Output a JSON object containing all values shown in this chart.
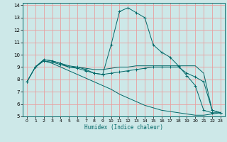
{
  "xlabel": "Humidex (Indice chaleur)",
  "ylabel": "",
  "bg_color": "#cde8e8",
  "grid_color": "#e8a0a0",
  "line_color": "#006868",
  "xlim": [
    -0.5,
    23.5
  ],
  "ylim": [
    5,
    14.2
  ],
  "yticks": [
    5,
    6,
    7,
    8,
    9,
    10,
    11,
    12,
    13,
    14
  ],
  "xticks": [
    0,
    1,
    2,
    3,
    4,
    5,
    6,
    7,
    8,
    9,
    10,
    11,
    12,
    13,
    14,
    15,
    16,
    17,
    18,
    19,
    20,
    21,
    22,
    23
  ],
  "series": [
    {
      "x": [
        0,
        1,
        2,
        3,
        4,
        5,
        6,
        7,
        8,
        9,
        10,
        11,
        12,
        13,
        14,
        15,
        16,
        17,
        18,
        19,
        20,
        21,
        22,
        23
      ],
      "y": [
        7.8,
        9.0,
        9.6,
        9.5,
        9.3,
        9.0,
        9.0,
        8.8,
        8.5,
        8.4,
        10.8,
        13.5,
        13.8,
        13.4,
        13.0,
        10.8,
        10.2,
        9.8,
        9.1,
        8.3,
        7.5,
        5.5,
        5.3,
        5.3
      ],
      "marker": "+"
    },
    {
      "x": [
        0,
        1,
        2,
        3,
        4,
        5,
        6,
        7,
        8,
        9,
        10,
        11,
        12,
        13,
        14,
        15,
        16,
        17,
        18,
        19,
        20,
        21,
        22,
        23
      ],
      "y": [
        7.8,
        9.0,
        9.6,
        9.5,
        9.3,
        9.1,
        9.0,
        8.9,
        8.8,
        8.8,
        8.9,
        9.0,
        9.0,
        9.1,
        9.1,
        9.1,
        9.1,
        9.1,
        9.1,
        9.1,
        9.1,
        8.5,
        5.5,
        5.3
      ],
      "marker": null
    },
    {
      "x": [
        0,
        1,
        2,
        3,
        4,
        5,
        6,
        7,
        8,
        9,
        10,
        11,
        12,
        13,
        14,
        15,
        16,
        17,
        18,
        19,
        20,
        21,
        22,
        23
      ],
      "y": [
        7.8,
        9.0,
        9.5,
        9.4,
        9.2,
        9.0,
        8.9,
        8.7,
        8.5,
        8.4,
        8.5,
        8.6,
        8.7,
        8.8,
        8.9,
        9.0,
        9.0,
        9.0,
        9.0,
        8.5,
        8.2,
        7.8,
        5.5,
        5.3
      ],
      "marker": "+"
    },
    {
      "x": [
        1,
        2,
        3,
        4,
        5,
        6,
        7,
        8,
        9,
        10,
        11,
        12,
        13,
        14,
        15,
        16,
        17,
        18,
        19,
        20,
        21,
        22,
        23
      ],
      "y": [
        9.0,
        9.5,
        9.3,
        9.0,
        8.7,
        8.4,
        8.1,
        7.8,
        7.5,
        7.2,
        6.8,
        6.5,
        6.2,
        5.9,
        5.7,
        5.5,
        5.4,
        5.3,
        5.2,
        5.1,
        5.1,
        5.2,
        5.3
      ],
      "marker": null
    }
  ]
}
